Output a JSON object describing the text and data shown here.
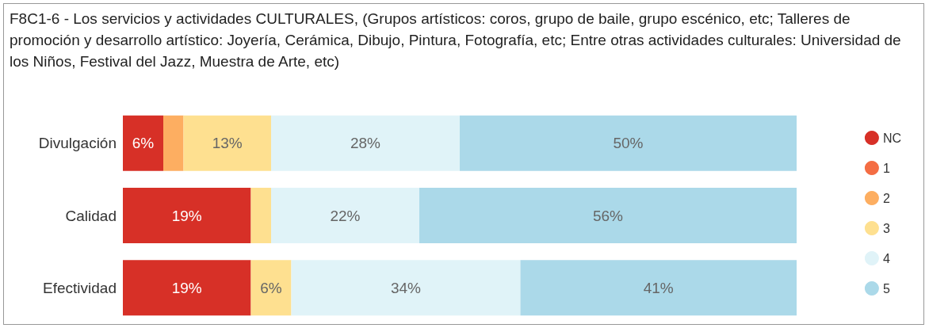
{
  "chart_data": {
    "type": "bar",
    "orientation": "horizontal",
    "stacked": true,
    "legend": "right",
    "title": "F8C1-6 - Los servicios y actividades CULTURALES, (Grupos artísticos: coros, grupo de baile, grupo escénico, etc; Talleres de promoción y desarrollo artístico: Joyería, Cerámica, Dibujo, Pintura, Fotografía, etc; Entre otras actividades culturales: Universidad de los Niños, Festival del Jazz, Muestra de Arte, etc)",
    "categories": [
      "Divulgación",
      "Calidad",
      "Efectividad"
    ],
    "series": [
      {
        "name": "NC",
        "color": "#d73027",
        "values": [
          6,
          19,
          19
        ],
        "value_labels": [
          "6%",
          "19%",
          "19%"
        ]
      },
      {
        "name": "1",
        "color": "#f46d43",
        "values": [
          0,
          0,
          0
        ],
        "value_labels": [
          null,
          null,
          null
        ]
      },
      {
        "name": "2",
        "color": "#fdae61",
        "values": [
          3,
          0,
          0
        ],
        "value_labels": [
          null,
          null,
          null
        ]
      },
      {
        "name": "3",
        "color": "#fee090",
        "values": [
          13,
          3,
          6
        ],
        "value_labels": [
          "13%",
          null,
          "6%"
        ]
      },
      {
        "name": "4",
        "color": "#e0f3f8",
        "values": [
          28,
          22,
          34
        ],
        "value_labels": [
          "28%",
          "22%",
          "34%"
        ]
      },
      {
        "name": "5",
        "color": "#abd9e9",
        "values": [
          50,
          56,
          41
        ],
        "value_labels": [
          "50%",
          "56%",
          "41%"
        ]
      }
    ]
  }
}
